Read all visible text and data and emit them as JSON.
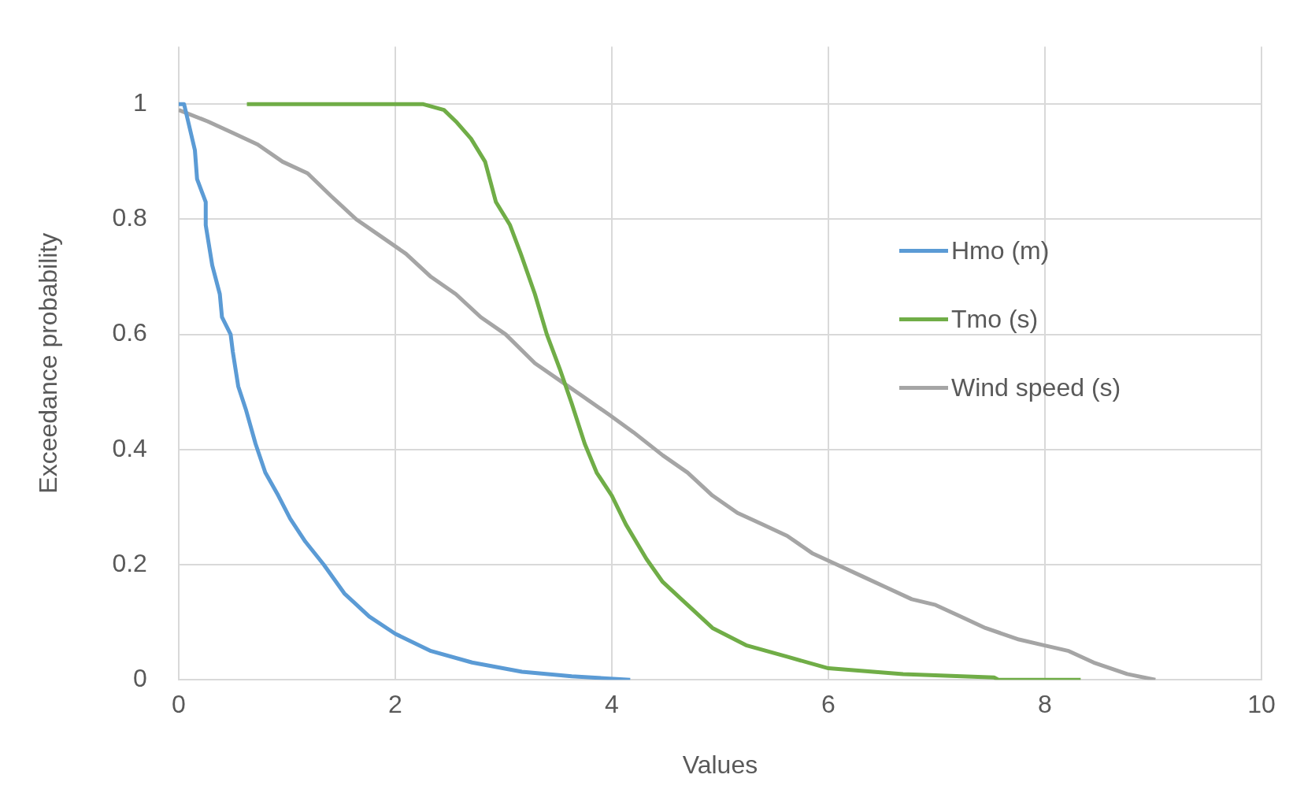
{
  "chart_data": {
    "type": "line",
    "xlabel": "Values",
    "ylabel": "Exceedance probability",
    "xlim": [
      0,
      10
    ],
    "xticks": [
      0,
      2,
      4,
      6,
      8,
      10
    ],
    "ylim": [
      0,
      1.1
    ],
    "yticks": [
      0,
      {
        "value": 0.2,
        "label": "0.2"
      },
      {
        "value": 0.4,
        "label": "0.4"
      },
      {
        "value": 0.6,
        "label": "0.6"
      },
      {
        "value": 0.8,
        "label": "0.8"
      },
      1
    ],
    "grid": true,
    "legend": "right",
    "marker": "none",
    "line_style": "solid",
    "series": [
      {
        "name": "Hmo (m)",
        "color": "#5b9bd5",
        "x": [
          0,
          0.05,
          0.15,
          0.17,
          0.25,
          0.25,
          0.31,
          0.38,
          0.4,
          0.48,
          0.5,
          0.55,
          0.62,
          0.71,
          0.8,
          0.92,
          1.03,
          1.17,
          1.34,
          1.53,
          1.76,
          2.0,
          2.33,
          2.71,
          3.17,
          3.63,
          4.17
        ],
        "values": [
          1,
          1,
          0.92,
          0.87,
          0.83,
          0.79,
          0.72,
          0.67,
          0.63,
          0.6,
          0.57,
          0.51,
          0.47,
          0.41,
          0.36,
          0.32,
          0.28,
          0.24,
          0.2,
          0.15,
          0.11,
          0.08,
          0.05,
          0.03,
          0.014,
          0.006,
          0
        ]
      },
      {
        "name": "Tmo (s)",
        "color": "#70ad47",
        "x": [
          0.63,
          2.26,
          2.45,
          2.56,
          2.7,
          2.83,
          2.93,
          3.06,
          3.16,
          3.29,
          3.4,
          3.52,
          3.63,
          3.75,
          3.86,
          4.0,
          4.13,
          4.32,
          4.47,
          4.7,
          4.93,
          5.24,
          5.62,
          6.0,
          6.69,
          7.53,
          7.57,
          8.33
        ],
        "values": [
          1,
          1,
          0.99,
          0.97,
          0.94,
          0.9,
          0.83,
          0.79,
          0.74,
          0.67,
          0.6,
          0.54,
          0.48,
          0.41,
          0.36,
          0.32,
          0.27,
          0.21,
          0.17,
          0.13,
          0.09,
          0.06,
          0.04,
          0.02,
          0.01,
          0.004,
          0,
          0
        ]
      },
      {
        "name": "Wind speed (s)",
        "color": "#a5a5a5",
        "x": [
          0,
          0.27,
          0.5,
          0.73,
          0.96,
          1.19,
          1.41,
          1.64,
          1.87,
          2.1,
          2.33,
          2.56,
          2.79,
          3.02,
          3.29,
          3.52,
          3.75,
          3.98,
          4.2,
          4.47,
          4.7,
          4.93,
          5.16,
          5.39,
          5.62,
          5.85,
          6.08,
          6.31,
          6.54,
          6.77,
          6.99,
          7.22,
          7.45,
          7.76,
          7.99,
          8.22,
          8.45,
          8.76,
          9.02
        ],
        "values": [
          0.99,
          0.97,
          0.95,
          0.93,
          0.9,
          0.88,
          0.84,
          0.8,
          0.77,
          0.74,
          0.7,
          0.67,
          0.63,
          0.6,
          0.55,
          0.52,
          0.49,
          0.46,
          0.43,
          0.39,
          0.36,
          0.32,
          0.29,
          0.27,
          0.25,
          0.22,
          0.2,
          0.18,
          0.16,
          0.14,
          0.13,
          0.11,
          0.09,
          0.07,
          0.06,
          0.05,
          0.03,
          0.01,
          0
        ]
      }
    ]
  }
}
